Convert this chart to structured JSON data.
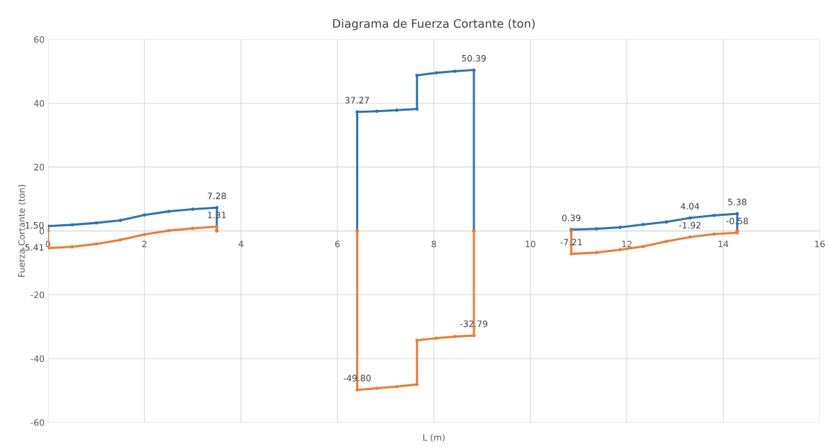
{
  "chart_data": {
    "type": "line",
    "title": "Diagrama de Fuerza Cortante (ton)",
    "xlabel": "L (m)",
    "ylabel": "Fuerza Cortante (ton)",
    "xlim": [
      0,
      16
    ],
    "xticks": [
      0,
      2,
      4,
      6,
      8,
      10,
      12,
      14,
      16
    ],
    "ylim": [
      -60,
      60
    ],
    "yticks": [
      -60,
      -40,
      -20,
      0,
      20,
      40,
      60
    ],
    "grid": true,
    "marker": "circle",
    "line_style": "solid",
    "series": [
      {
        "color": "#2e75b6",
        "x": [
          0,
          0,
          0.5,
          1,
          1.5,
          2,
          2.5,
          3,
          3.5,
          3.5,
          5,
          6.41,
          6.41,
          6.82,
          7.23,
          7.65,
          7.65,
          8.05,
          8.44,
          8.83,
          8.83,
          10,
          10.85,
          10.85,
          11.37,
          11.86,
          12.34,
          12.82,
          13.31,
          13.81,
          14.29,
          14.29
        ],
        "values": [
          0,
          1.5,
          1.9,
          2.5,
          3.3,
          5.0,
          6.1,
          6.8,
          7.28,
          0,
          null,
          0,
          37.27,
          37.5,
          37.8,
          38.2,
          48.7,
          49.5,
          50.0,
          50.39,
          0,
          null,
          0,
          0.39,
          0.65,
          1.1,
          2.0,
          2.8,
          4.04,
          4.85,
          5.38,
          0
        ]
      },
      {
        "color": "#ed7d31",
        "x": [
          0,
          0,
          0.5,
          1,
          1.5,
          2,
          2.5,
          3,
          3.5,
          3.5,
          5,
          6.41,
          6.41,
          6.82,
          7.23,
          7.65,
          7.65,
          8.05,
          8.44,
          8.83,
          8.83,
          10,
          10.85,
          10.85,
          11.37,
          11.86,
          12.34,
          12.82,
          13.31,
          13.81,
          14.29,
          14.29
        ],
        "values": [
          0,
          -5.41,
          -5.0,
          -4.1,
          -2.8,
          -1.15,
          0.07,
          0.8,
          1.31,
          0,
          null,
          0,
          -49.8,
          -49.3,
          -48.8,
          -48.1,
          -34.3,
          -33.6,
          -33.1,
          -32.79,
          0,
          null,
          0,
          -7.21,
          -6.8,
          -5.9,
          -4.9,
          -3.3,
          -1.92,
          -1.0,
          -0.58,
          0
        ]
      }
    ],
    "annotations": [
      {
        "text": "1.50",
        "x": 0,
        "y": 1.5
      },
      {
        "text": "-5.41",
        "x": 0,
        "y": -5.41
      },
      {
        "text": "7.28",
        "x": 3.5,
        "y": 7.28
      },
      {
        "text": "1.31",
        "x": 3.5,
        "y": 1.31
      },
      {
        "text": "37.27",
        "x": 6.41,
        "y": 37.27
      },
      {
        "text": "50.39",
        "x": 8.83,
        "y": 50.39
      },
      {
        "text": "-49.80",
        "x": 6.41,
        "y": -49.8
      },
      {
        "text": "-32.79",
        "x": 8.83,
        "y": -32.79
      },
      {
        "text": "0.39",
        "x": 10.85,
        "y": 0.39
      },
      {
        "text": "-7.21",
        "x": 10.85,
        "y": -7.21
      },
      {
        "text": "4.04",
        "x": 13.31,
        "y": 4.04
      },
      {
        "text": "-1.92",
        "x": 13.31,
        "y": -1.92
      },
      {
        "text": "5.38",
        "x": 14.29,
        "y": 5.38
      },
      {
        "text": "-0.58",
        "x": 14.29,
        "y": -0.58
      }
    ]
  }
}
